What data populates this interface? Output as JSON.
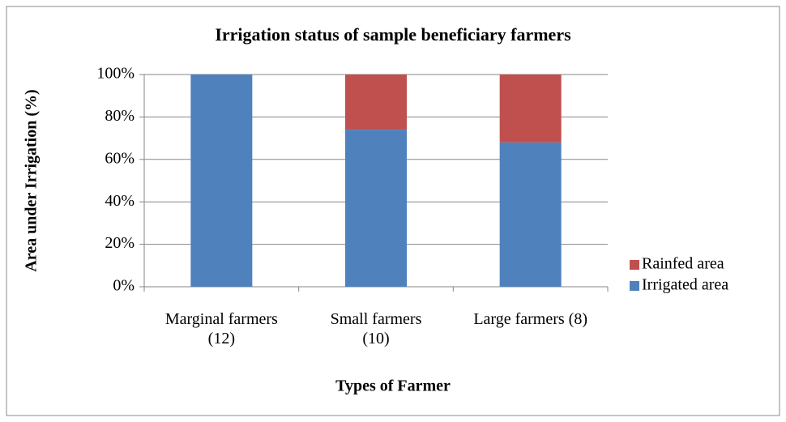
{
  "chart_data": {
    "type": "bar",
    "stacked": true,
    "title": "Irrigation status of sample beneficiary farmers",
    "x_label": "Types of Farmer",
    "y_label": "Area under Irrigation (%)",
    "categories": [
      "Marginal farmers\n(12)",
      "Small farmers\n(10)",
      "Large farmers (8)"
    ],
    "series": [
      {
        "name": "Irrigated area",
        "color": "#4f81bd",
        "values": [
          100,
          74,
          68
        ]
      },
      {
        "name": "Rainfed area",
        "color": "#c0504d",
        "values": [
          0,
          26,
          32
        ]
      }
    ],
    "ylim": [
      0,
      100
    ],
    "yticks": [
      {
        "value": 0,
        "label": "0%"
      },
      {
        "value": 20,
        "label": "20%"
      },
      {
        "value": 40,
        "label": "40%"
      },
      {
        "value": 60,
        "label": "60%"
      },
      {
        "value": 80,
        "label": "80%"
      },
      {
        "value": 100,
        "label": "100%"
      }
    ],
    "grid": true,
    "legend": "right"
  }
}
